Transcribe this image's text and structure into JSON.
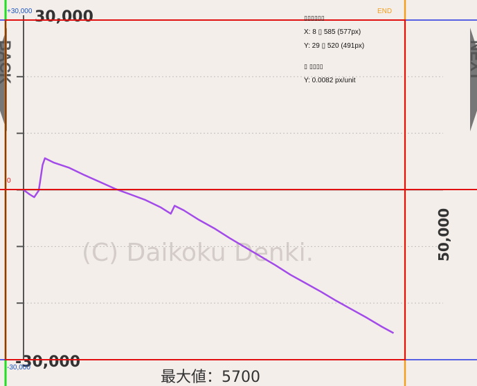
{
  "nav": {
    "back_label": "BACK",
    "next_label": "NEXT"
  },
  "overlay": {
    "top_label": "+30,000",
    "bottom_label": "-30,000",
    "zero_label": "0",
    "end_label": "END",
    "info_title": "▯▯▯▯▯▯",
    "x_line": "X: 8 ▯ 585 (577px)",
    "y_line": "Y: 29 ▯ 520 (491px)",
    "scale_title": "▯ ▯▯▯▯",
    "scale_line": "Y: 0.0082 px/unit"
  },
  "colors": {
    "background": "#f4eeea",
    "series": "#a24be8",
    "frame": "#e01010",
    "guide_left": "#22dd22",
    "guide_right": "#f0a020",
    "guide_hline": "#2030e0",
    "grid": "#bdbdbd",
    "axis": "#555555"
  },
  "chart_data": {
    "type": "line",
    "title": "",
    "xlabel": "",
    "ylabel": "",
    "ylim": [
      -30000,
      30000
    ],
    "yticks": [
      30000,
      20000,
      10000,
      0,
      -10000,
      -20000,
      -30000
    ],
    "ytick_labels": [
      "30,000",
      "",
      "",
      "",
      "",
      "",
      "-30,000"
    ],
    "grid": true,
    "x_scale_label": "50,000",
    "max_label": "最大値：5700",
    "watermark": "(C) Daikoku Denki.",
    "series": [
      {
        "values": [
          [
            0,
            0
          ],
          [
            800,
            -800
          ],
          [
            1400,
            -1300
          ],
          [
            2000,
            -100
          ],
          [
            2500,
            4400
          ],
          [
            2800,
            5600
          ],
          [
            4000,
            4800
          ],
          [
            6000,
            3900
          ],
          [
            8000,
            2600
          ],
          [
            10000,
            1400
          ],
          [
            12000,
            200
          ],
          [
            14000,
            -800
          ],
          [
            16000,
            -1800
          ],
          [
            18000,
            -3100
          ],
          [
            19300,
            -4200
          ],
          [
            19800,
            -2800
          ],
          [
            21000,
            -3600
          ],
          [
            23000,
            -5300
          ],
          [
            25000,
            -6800
          ],
          [
            27000,
            -8500
          ],
          [
            29000,
            -10100
          ],
          [
            31000,
            -11700
          ],
          [
            33000,
            -13300
          ],
          [
            35000,
            -15000
          ],
          [
            37000,
            -16500
          ],
          [
            39000,
            -18000
          ],
          [
            41000,
            -19600
          ],
          [
            43000,
            -21100
          ],
          [
            45000,
            -22600
          ],
          [
            47000,
            -24200
          ],
          [
            48500,
            -25300
          ]
        ]
      }
    ]
  }
}
